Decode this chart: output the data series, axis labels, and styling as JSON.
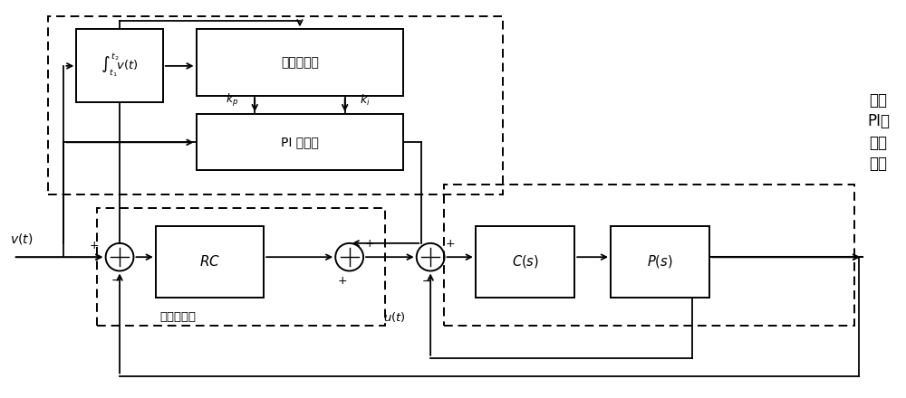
{
  "bg_color": "#ffffff",
  "fig_width": 10.0,
  "fig_height": 4.4,
  "dpi": 100,
  "labels": {
    "v_input": "$v(t)$",
    "integral_box": "$\\int_{t_1}^{t_2}\\!v(t)$",
    "predict_ctrl": "预测控制器",
    "pi_ctrl": "PI 控制器",
    "rc_block": "$RC$",
    "cs_block": "$C(s)$",
    "ps_block": "$P(s)$",
    "u_label": "$u(t)$",
    "kp_label": "$k_p$",
    "ki_label": "$k_i$",
    "repeat_ctrl": "重复控制器",
    "right_label": "预测\nPI联\n合控\n制器"
  }
}
